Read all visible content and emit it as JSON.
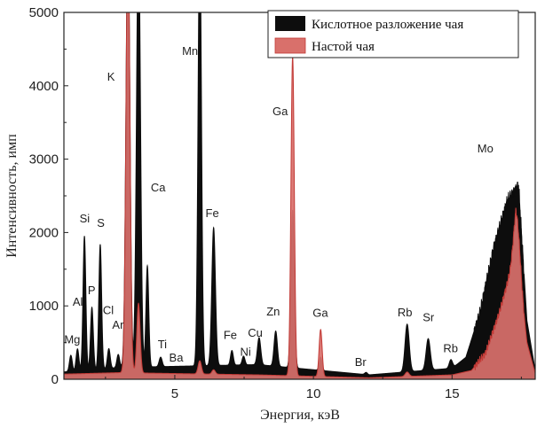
{
  "colors": {
    "acid_digestion": "#0d0d0d",
    "infusion_fill": "#d9706b",
    "infusion_line": "#c23a36",
    "axis": "#222222"
  },
  "chart_data": {
    "type": "area",
    "title": "",
    "xlabel": "Энергия, кэВ",
    "ylabel": "Интенсивность, имп",
    "xlim": [
      1,
      18
    ],
    "ylim": [
      0,
      5000
    ],
    "x_ticks": [
      5,
      10,
      15
    ],
    "x_tick_labels": [
      "5",
      "10",
      "15"
    ],
    "y_ticks": [
      0,
      1000,
      2000,
      3000,
      4000,
      5000
    ],
    "y_tick_labels": [
      "0",
      "1000",
      "2000",
      "3000",
      "4000",
      "5000"
    ],
    "grid": false,
    "legend_position": "top-right",
    "series": [
      {
        "name": "Кислотное разложение чая",
        "color_key": "acid_digestion",
        "baseline": [
          [
            1.0,
            100
          ],
          [
            3.0,
            160
          ],
          [
            8.0,
            200
          ],
          [
            12.0,
            60
          ],
          [
            15.0,
            150
          ],
          [
            15.5,
            300
          ],
          [
            16.0,
            900
          ],
          [
            16.5,
            1800
          ],
          [
            17.0,
            2450
          ],
          [
            17.4,
            2650
          ],
          [
            17.7,
            800
          ],
          [
            18.0,
            120
          ]
        ],
        "peaks": [
          {
            "x": 1.25,
            "height": 220,
            "width": 0.05
          },
          {
            "x": 1.49,
            "height": 300,
            "width": 0.05
          },
          {
            "x": 1.74,
            "height": 1830,
            "width": 0.05
          },
          {
            "x": 2.01,
            "height": 850,
            "width": 0.05
          },
          {
            "x": 2.31,
            "height": 1700,
            "width": 0.05
          },
          {
            "x": 2.62,
            "height": 270,
            "width": 0.05
          },
          {
            "x": 2.96,
            "height": 180,
            "width": 0.05
          },
          {
            "x": 3.31,
            "height": 6000,
            "width": 0.07
          },
          {
            "x": 3.69,
            "height": 6000,
            "width": 0.07
          },
          {
            "x": 4.01,
            "height": 1380,
            "width": 0.05
          },
          {
            "x": 4.51,
            "height": 70,
            "width": 0.05
          },
          {
            "x": 4.47,
            "height": 70,
            "width": 0.05
          },
          {
            "x": 5.9,
            "height": 6000,
            "width": 0.06
          },
          {
            "x": 6.4,
            "height": 1880,
            "width": 0.065
          },
          {
            "x": 7.06,
            "height": 200,
            "width": 0.05
          },
          {
            "x": 7.48,
            "height": 120,
            "width": 0.05
          },
          {
            "x": 8.04,
            "height": 370,
            "width": 0.06
          },
          {
            "x": 8.64,
            "height": 480,
            "width": 0.06
          },
          {
            "x": 9.25,
            "height": 2150,
            "width": 0.06
          },
          {
            "x": 10.26,
            "height": 180,
            "width": 0.05
          },
          {
            "x": 11.9,
            "height": 30,
            "width": 0.05
          },
          {
            "x": 13.38,
            "height": 650,
            "width": 0.075
          },
          {
            "x": 14.14,
            "height": 430,
            "width": 0.075
          },
          {
            "x": 14.96,
            "height": 120,
            "width": 0.06
          }
        ]
      },
      {
        "name": "Настой чая",
        "color_key": "infusion_fill",
        "baseline": [
          [
            1.0,
            70
          ],
          [
            3.0,
            90
          ],
          [
            8.0,
            60
          ],
          [
            12.0,
            20
          ],
          [
            15.0,
            60
          ],
          [
            15.7,
            120
          ],
          [
            16.2,
            350
          ],
          [
            16.7,
            900
          ],
          [
            17.1,
            1450
          ],
          [
            17.3,
            1800
          ],
          [
            17.7,
            500
          ],
          [
            18.0,
            80
          ]
        ],
        "peaks": [
          {
            "x": 3.31,
            "height": 6000,
            "width": 0.07
          },
          {
            "x": 3.69,
            "height": 950,
            "width": 0.06
          },
          {
            "x": 5.9,
            "height": 180,
            "width": 0.06
          },
          {
            "x": 6.4,
            "height": 60,
            "width": 0.06
          },
          {
            "x": 9.25,
            "height": 4350,
            "width": 0.06
          },
          {
            "x": 10.26,
            "height": 640,
            "width": 0.055
          },
          {
            "x": 13.38,
            "height": 60,
            "width": 0.07
          },
          {
            "x": 17.35,
            "height": 550,
            "width": 0.12
          }
        ]
      }
    ],
    "annotations": [
      {
        "text": "Mg",
        "x": 1.3,
        "y": 490,
        "size": "small"
      },
      {
        "text": "Al",
        "x": 1.5,
        "y": 1000
      },
      {
        "text": "Si",
        "x": 1.75,
        "y": 2140
      },
      {
        "text": "P",
        "x": 2.0,
        "y": 1160
      },
      {
        "text": "S",
        "x": 2.33,
        "y": 2080
      },
      {
        "text": "Cl",
        "x": 2.6,
        "y": 890
      },
      {
        "text": "Ar",
        "x": 2.95,
        "y": 690
      },
      {
        "text": "K",
        "x": 2.7,
        "y": 4070
      },
      {
        "text": "Ca",
        "x": 4.4,
        "y": 2560
      },
      {
        "text": "Mn",
        "x": 5.55,
        "y": 4420
      },
      {
        "text": "Ti",
        "x": 4.55,
        "y": 420
      },
      {
        "text": "Ba",
        "x": 5.05,
        "y": 240
      },
      {
        "text": "Fe",
        "x": 6.35,
        "y": 2210
      },
      {
        "text": "Fe",
        "x": 7.0,
        "y": 550
      },
      {
        "text": "Ni",
        "x": 7.55,
        "y": 320
      },
      {
        "text": "Cu",
        "x": 7.9,
        "y": 580
      },
      {
        "text": "Zn",
        "x": 8.55,
        "y": 870
      },
      {
        "text": "Ga",
        "x": 8.8,
        "y": 3600
      },
      {
        "text": "Ga",
        "x": 10.25,
        "y": 850
      },
      {
        "text": "Br",
        "x": 11.7,
        "y": 180
      },
      {
        "text": "Rb",
        "x": 13.3,
        "y": 860
      },
      {
        "text": "Sr",
        "x": 14.15,
        "y": 790
      },
      {
        "text": "Rb",
        "x": 14.95,
        "y": 370
      },
      {
        "text": "Mo",
        "x": 16.2,
        "y": 3090
      }
    ]
  }
}
